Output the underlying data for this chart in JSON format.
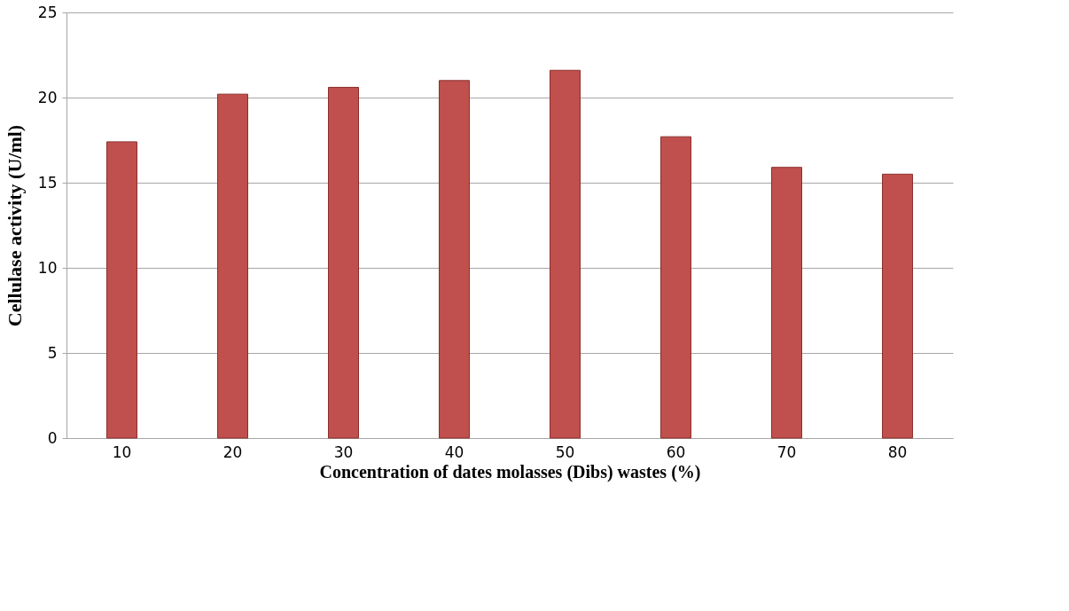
{
  "chart_data": {
    "type": "bar",
    "xlabel": "Concentration of dates molasses (Dibs) wastes (%)",
    "ylabel": "Cellulase activity (U/ml)",
    "categories": [
      "10",
      "20",
      "30",
      "40",
      "50",
      "60",
      "70",
      "80"
    ],
    "values": [
      17.4,
      20.2,
      20.6,
      21.0,
      21.6,
      17.7,
      15.9,
      15.5
    ],
    "color": "#c0504d",
    "ylim": [
      0,
      25
    ],
    "yticks": [
      0,
      5,
      10,
      15,
      20,
      25
    ],
    "grid": "y"
  }
}
